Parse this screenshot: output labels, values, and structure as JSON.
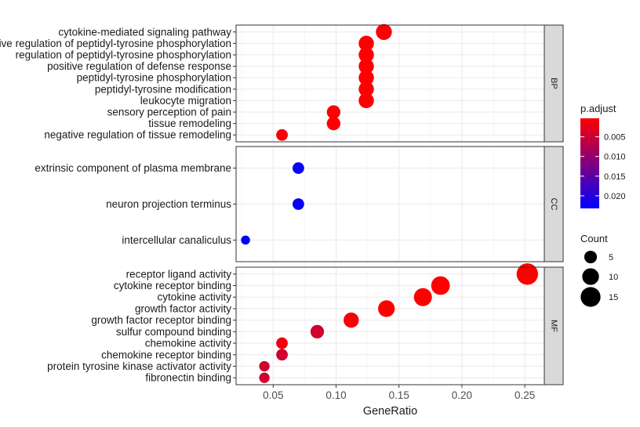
{
  "chart_data": {
    "type": "scatter",
    "xlabel": "GeneRatio",
    "x_ticks": [
      0.05,
      0.1,
      0.15,
      0.2,
      0.25
    ],
    "x_tick_labels": [
      "0.05",
      "0.10",
      "0.15",
      "0.20",
      "0.25"
    ],
    "xlim": [
      0.0205,
      0.2655
    ],
    "grid": true,
    "legend_position": "right",
    "color_legend": {
      "title": "p.adjust",
      "ticks": [
        0.005,
        0.01,
        0.015,
        0.02
      ],
      "tick_labels": [
        "0.005",
        "0.010",
        "0.015",
        "0.020"
      ],
      "low_color": "#ff0000",
      "high_color": "#0000ff",
      "range": [
        0.0003,
        0.0232
      ]
    },
    "size_legend": {
      "title": "Count",
      "values": [
        5,
        10,
        15
      ],
      "labels": [
        "5",
        "10",
        "15"
      ]
    },
    "facets": [
      {
        "name": "BP",
        "points": [
          {
            "term": "cytokine-mediated signaling pathway",
            "gene_ratio": 0.138,
            "count": 9,
            "p_adjust": 0.0005
          },
          {
            "term": "positive regulation of peptidyl-tyrosine phosphorylation",
            "gene_ratio": 0.124,
            "count": 8,
            "p_adjust": 0.0005
          },
          {
            "term": "regulation of peptidyl-tyrosine phosphorylation",
            "gene_ratio": 0.124,
            "count": 8,
            "p_adjust": 0.0005
          },
          {
            "term": "positive regulation of defense response",
            "gene_ratio": 0.124,
            "count": 8,
            "p_adjust": 0.0005
          },
          {
            "term": "peptidyl-tyrosine phosphorylation",
            "gene_ratio": 0.124,
            "count": 8,
            "p_adjust": 0.0005
          },
          {
            "term": "peptidyl-tyrosine modification",
            "gene_ratio": 0.124,
            "count": 8,
            "p_adjust": 0.0005
          },
          {
            "term": "leukocyte migration",
            "gene_ratio": 0.124,
            "count": 8,
            "p_adjust": 0.0006
          },
          {
            "term": "sensory perception of pain",
            "gene_ratio": 0.098,
            "count": 6,
            "p_adjust": 0.0006
          },
          {
            "term": "tissue remodeling",
            "gene_ratio": 0.098,
            "count": 6,
            "p_adjust": 0.0006
          },
          {
            "term": "negative regulation of tissue remodeling",
            "gene_ratio": 0.057,
            "count": 4,
            "p_adjust": 0.0008
          }
        ]
      },
      {
        "name": "CC",
        "points": [
          {
            "term": "extrinsic component of plasma membrane",
            "gene_ratio": 0.07,
            "count": 4,
            "p_adjust": 0.0225
          },
          {
            "term": "neuron projection terminus",
            "gene_ratio": 0.07,
            "count": 4,
            "p_adjust": 0.0225
          },
          {
            "term": "intercellular canaliculus",
            "gene_ratio": 0.028,
            "count": 2,
            "p_adjust": 0.023
          }
        ]
      },
      {
        "name": "MF",
        "points": [
          {
            "term": "receptor ligand activity",
            "gene_ratio": 0.252,
            "count": 18,
            "p_adjust": 0.0003
          },
          {
            "term": "cytokine receptor binding",
            "gene_ratio": 0.183,
            "count": 13,
            "p_adjust": 0.0003
          },
          {
            "term": "cytokine activity",
            "gene_ratio": 0.169,
            "count": 12,
            "p_adjust": 0.0003
          },
          {
            "term": "growth factor activity",
            "gene_ratio": 0.14,
            "count": 10,
            "p_adjust": 0.0003
          },
          {
            "term": "growth factor receptor binding",
            "gene_ratio": 0.112,
            "count": 8,
            "p_adjust": 0.0008
          },
          {
            "term": "sulfur compound binding",
            "gene_ratio": 0.085,
            "count": 6,
            "p_adjust": 0.0045
          },
          {
            "term": "chemokine activity",
            "gene_ratio": 0.057,
            "count": 4,
            "p_adjust": 0.0015
          },
          {
            "term": "chemokine receptor binding",
            "gene_ratio": 0.057,
            "count": 4,
            "p_adjust": 0.0045
          },
          {
            "term": "protein tyrosine kinase activator activity",
            "gene_ratio": 0.043,
            "count": 3,
            "p_adjust": 0.0045
          },
          {
            "term": "fibronectin binding",
            "gene_ratio": 0.043,
            "count": 3,
            "p_adjust": 0.0045
          }
        ]
      }
    ]
  }
}
